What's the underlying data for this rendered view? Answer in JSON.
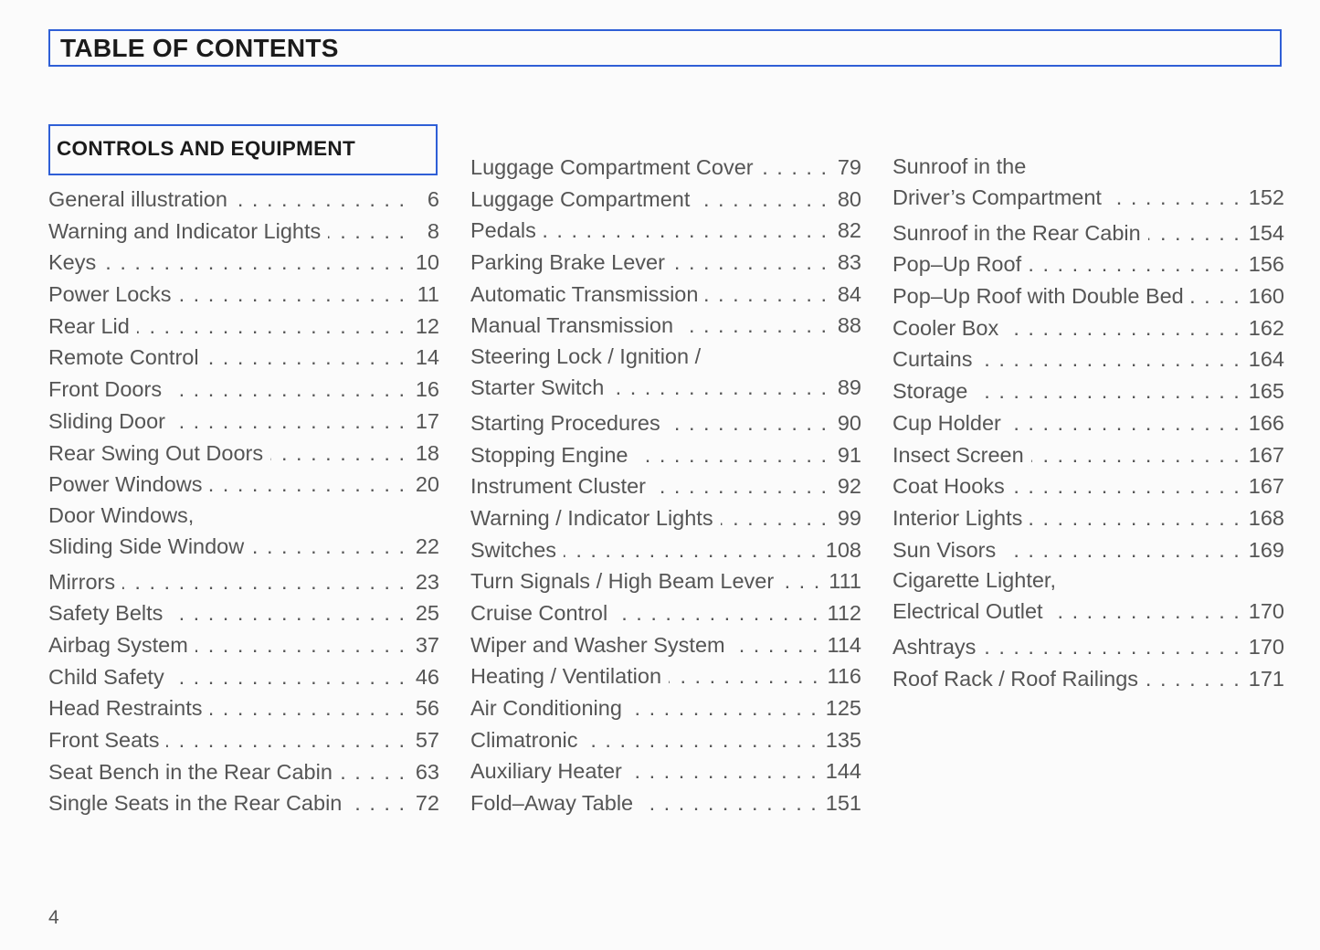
{
  "title": "TABLE OF CONTENTS",
  "section": "CONTROLS AND EQUIPMENT",
  "accent_color": "#2f5fd6",
  "columns": [
    [
      {
        "lines": [
          "General illustration"
        ],
        "page": "6"
      },
      {
        "lines": [
          "Warning and Indicator Lights"
        ],
        "page": "8"
      },
      {
        "lines": [
          "Keys"
        ],
        "page": "10"
      },
      {
        "lines": [
          "Power Locks"
        ],
        "page": "11"
      },
      {
        "lines": [
          "Rear Lid"
        ],
        "page": "12"
      },
      {
        "lines": [
          "Remote Control"
        ],
        "page": "14"
      },
      {
        "lines": [
          "Front Doors"
        ],
        "page": "16"
      },
      {
        "lines": [
          "Sliding Door"
        ],
        "page": "17"
      },
      {
        "lines": [
          "Rear Swing Out Doors"
        ],
        "page": "18"
      },
      {
        "lines": [
          "Power Windows"
        ],
        "page": "20"
      },
      {
        "lines": [
          "Door Windows,",
          "Sliding Side Window"
        ],
        "page": "22"
      },
      {
        "lines": [
          "Mirrors"
        ],
        "page": "23"
      },
      {
        "lines": [
          "Safety Belts"
        ],
        "page": "25"
      },
      {
        "lines": [
          "Airbag System"
        ],
        "page": "37"
      },
      {
        "lines": [
          "Child Safety"
        ],
        "page": "46"
      },
      {
        "lines": [
          "Head Restraints"
        ],
        "page": "56"
      },
      {
        "lines": [
          "Front Seats"
        ],
        "page": "57"
      },
      {
        "lines": [
          "Seat Bench in the Rear Cabin"
        ],
        "page": "63"
      },
      {
        "lines": [
          "Single Seats in the Rear Cabin"
        ],
        "page": "72"
      }
    ],
    [
      {
        "lines": [
          "Luggage Compartment Cover"
        ],
        "page": "79"
      },
      {
        "lines": [
          "Luggage Compartment"
        ],
        "page": "80"
      },
      {
        "lines": [
          "Pedals"
        ],
        "page": "82"
      },
      {
        "lines": [
          "Parking Brake Lever"
        ],
        "page": "83"
      },
      {
        "lines": [
          "Automatic Transmission"
        ],
        "page": "84"
      },
      {
        "lines": [
          "Manual Transmission"
        ],
        "page": "88"
      },
      {
        "lines": [
          "Steering Lock / Ignition /",
          "Starter Switch"
        ],
        "page": "89"
      },
      {
        "lines": [
          "Starting Procedures"
        ],
        "page": "90"
      },
      {
        "lines": [
          "Stopping Engine"
        ],
        "page": "91"
      },
      {
        "lines": [
          "Instrument Cluster"
        ],
        "page": "92"
      },
      {
        "lines": [
          "Warning / Indicator Lights"
        ],
        "page": "99"
      },
      {
        "lines": [
          "Switches"
        ],
        "page": "108"
      },
      {
        "lines": [
          "Turn Signals / High Beam Lever"
        ],
        "page": "111"
      },
      {
        "lines": [
          "Cruise Control"
        ],
        "page": "112"
      },
      {
        "lines": [
          "Wiper and Washer System"
        ],
        "page": "114"
      },
      {
        "lines": [
          "Heating / Ventilation"
        ],
        "page": "116"
      },
      {
        "lines": [
          "Air Conditioning"
        ],
        "page": "125"
      },
      {
        "lines": [
          "Climatronic"
        ],
        "page": "135"
      },
      {
        "lines": [
          "Auxiliary Heater"
        ],
        "page": "144"
      },
      {
        "lines": [
          "Fold–Away Table"
        ],
        "page": "151"
      }
    ],
    [
      {
        "lines": [
          "Sunroof in the",
          "Driver’s Compartment"
        ],
        "page": "152"
      },
      {
        "lines": [
          "Sunroof in the Rear Cabin"
        ],
        "page": "154"
      },
      {
        "lines": [
          "Pop–Up Roof"
        ],
        "page": "156"
      },
      {
        "lines": [
          "Pop–Up Roof with Double Bed"
        ],
        "page": "160"
      },
      {
        "lines": [
          "Cooler Box"
        ],
        "page": "162"
      },
      {
        "lines": [
          "Curtains"
        ],
        "page": "164"
      },
      {
        "lines": [
          "Storage"
        ],
        "page": "165"
      },
      {
        "lines": [
          "Cup Holder"
        ],
        "page": "166"
      },
      {
        "lines": [
          "Insect Screen"
        ],
        "page": "167"
      },
      {
        "lines": [
          "Coat Hooks"
        ],
        "page": "167"
      },
      {
        "lines": [
          "Interior Lights"
        ],
        "page": "168"
      },
      {
        "lines": [
          "Sun Visors"
        ],
        "page": "169"
      },
      {
        "lines": [
          "Cigarette Lighter,",
          "Electrical Outlet"
        ],
        "page": "170"
      },
      {
        "lines": [
          "Ashtrays"
        ],
        "page": "170"
      },
      {
        "lines": [
          "Roof Rack / Roof Railings"
        ],
        "page": "171"
      }
    ]
  ],
  "page_number": "4"
}
